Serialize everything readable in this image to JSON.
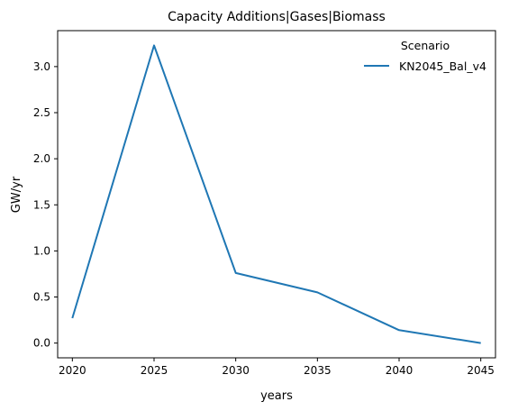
{
  "chart_data": {
    "type": "line",
    "title": "Capacity Additions|Gases|Biomass",
    "xlabel": "years",
    "ylabel": "GW/yr",
    "x": [
      2020,
      2025,
      2030,
      2035,
      2040,
      2045
    ],
    "xticks": [
      "2020",
      "2025",
      "2030",
      "2035",
      "2040",
      "2045"
    ],
    "yticks": [
      "0.0",
      "0.5",
      "1.0",
      "1.5",
      "2.0",
      "2.5",
      "3.0"
    ],
    "xlim": [
      2019.1,
      2045.9
    ],
    "ylim": [
      -0.16,
      3.39
    ],
    "grid": false,
    "legend": {
      "title": "Scenario",
      "placement": "top-right"
    },
    "series": [
      {
        "name": "KN2045_Bal_v4",
        "color": "#1f77b4",
        "values": [
          0.27,
          3.23,
          0.76,
          0.55,
          0.14,
          0.0
        ]
      }
    ]
  }
}
